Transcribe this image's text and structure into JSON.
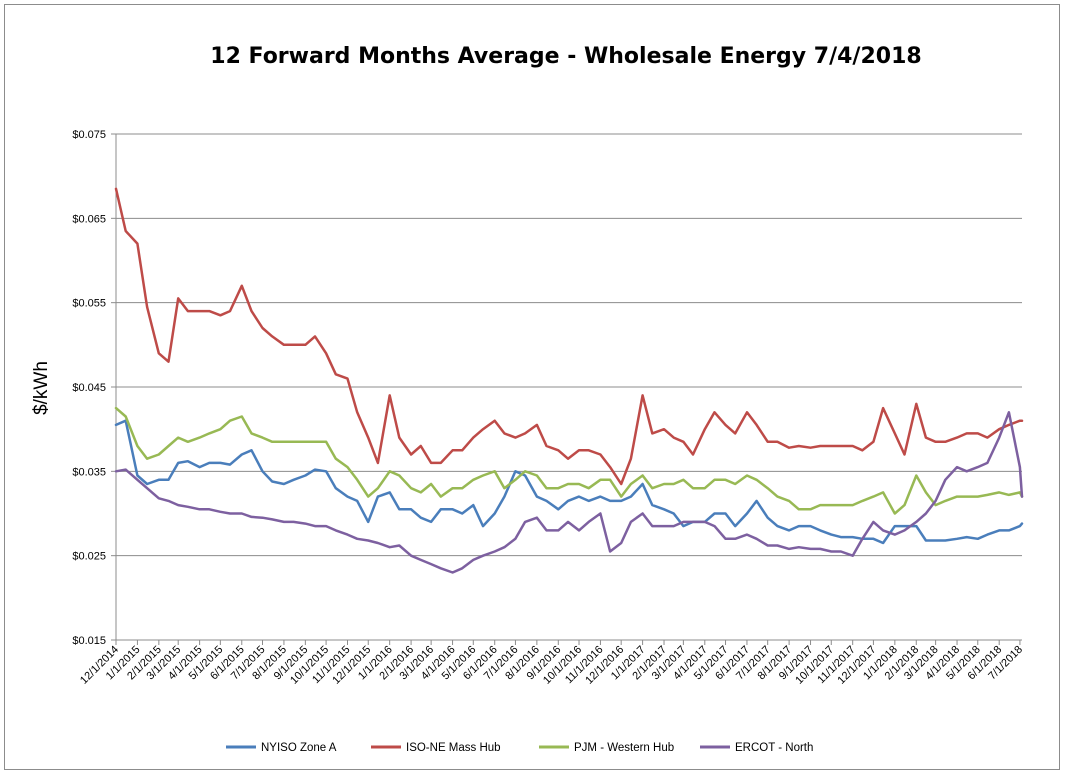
{
  "chart_data": {
    "type": "line",
    "title": "12 Forward Months Average - Wholesale Energy 7/4/2018",
    "xlabel": "",
    "ylabel": "$/kWh",
    "ylim": [
      0.015,
      0.075
    ],
    "y_ticks": [
      "$0.015",
      "$0.025",
      "$0.035",
      "$0.045",
      "$0.055",
      "$0.065",
      "$0.075"
    ],
    "x_ticks": [
      "12/1/2014",
      "1/1/2015",
      "2/1/2015",
      "3/1/2015",
      "4/1/2015",
      "5/1/2015",
      "6/1/2015",
      "7/1/2015",
      "8/1/2015",
      "9/1/2015",
      "10/1/2015",
      "11/1/2015",
      "12/1/2015",
      "1/1/2016",
      "2/1/2016",
      "3/1/2016",
      "4/1/2016",
      "5/1/2016",
      "6/1/2016",
      "7/1/2016",
      "8/1/2016",
      "9/1/2016",
      "10/1/2016",
      "11/1/2016",
      "12/1/2016",
      "1/1/2017",
      "2/1/2017",
      "3/1/2017",
      "4/1/2017",
      "5/1/2017",
      "6/1/2017",
      "7/1/2017",
      "8/1/2017",
      "9/1/2017",
      "10/1/2017",
      "11/1/2017",
      "12/1/2017",
      "1/1/2018",
      "2/1/2018",
      "3/1/2018",
      "4/1/2018",
      "5/1/2018",
      "6/1/2018",
      "7/1/2018"
    ],
    "grid": true,
    "legend_position": "bottom",
    "x": [
      "12/1/2014",
      "12/15/2014",
      "1/1/2015",
      "1/15/2015",
      "2/1/2015",
      "2/15/2015",
      "3/1/2015",
      "3/15/2015",
      "4/1/2015",
      "4/15/2015",
      "5/1/2015",
      "5/15/2015",
      "6/1/2015",
      "6/15/2015",
      "7/1/2015",
      "7/15/2015",
      "8/1/2015",
      "8/15/2015",
      "9/1/2015",
      "9/15/2015",
      "10/1/2015",
      "10/15/2015",
      "11/1/2015",
      "11/15/2015",
      "12/1/2015",
      "12/15/2015",
      "1/1/2016",
      "1/15/2016",
      "2/1/2016",
      "2/15/2016",
      "3/1/2016",
      "3/15/2016",
      "4/1/2016",
      "4/15/2016",
      "5/1/2016",
      "5/15/2016",
      "6/1/2016",
      "6/15/2016",
      "7/1/2016",
      "7/15/2016",
      "8/1/2016",
      "8/15/2016",
      "9/1/2016",
      "9/15/2016",
      "10/1/2016",
      "10/15/2016",
      "11/1/2016",
      "11/15/2016",
      "12/1/2016",
      "12/15/2016",
      "1/1/2017",
      "1/15/2017",
      "2/1/2017",
      "2/15/2017",
      "3/1/2017",
      "3/15/2017",
      "4/1/2017",
      "4/15/2017",
      "5/1/2017",
      "5/15/2017",
      "6/1/2017",
      "6/15/2017",
      "7/1/2017",
      "7/15/2017",
      "8/1/2017",
      "8/15/2017",
      "9/1/2017",
      "9/15/2017",
      "10/1/2017",
      "10/15/2017",
      "11/1/2017",
      "11/15/2017",
      "12/1/2017",
      "12/15/2017",
      "1/1/2018",
      "1/15/2018",
      "2/1/2018",
      "2/15/2018",
      "3/1/2018",
      "3/15/2018",
      "4/1/2018",
      "4/15/2018",
      "5/1/2018",
      "5/15/2018",
      "6/1/2018",
      "6/15/2018",
      "7/1/2018",
      "7/4/2018"
    ],
    "series": [
      {
        "name": "NYISO Zone A",
        "color": "#4a7ebb",
        "values": [
          0.0405,
          0.041,
          0.0345,
          0.0335,
          0.034,
          0.034,
          0.036,
          0.0362,
          0.0355,
          0.036,
          0.036,
          0.0358,
          0.037,
          0.0375,
          0.035,
          0.0338,
          0.0335,
          0.034,
          0.0345,
          0.0352,
          0.035,
          0.033,
          0.032,
          0.0315,
          0.029,
          0.032,
          0.0325,
          0.0305,
          0.0305,
          0.0295,
          0.029,
          0.0305,
          0.0305,
          0.03,
          0.031,
          0.0285,
          0.03,
          0.032,
          0.035,
          0.0345,
          0.032,
          0.0315,
          0.0305,
          0.0315,
          0.032,
          0.0315,
          0.032,
          0.0315,
          0.0315,
          0.032,
          0.0335,
          0.031,
          0.0305,
          0.03,
          0.0285,
          0.029,
          0.029,
          0.03,
          0.03,
          0.0285,
          0.03,
          0.0315,
          0.0295,
          0.0285,
          0.028,
          0.0285,
          0.0285,
          0.028,
          0.0275,
          0.0272,
          0.0272,
          0.027,
          0.027,
          0.0265,
          0.0285,
          0.0285,
          0.0285,
          0.0268,
          0.0268,
          0.0268,
          0.027,
          0.0272,
          0.027,
          0.0275,
          0.028,
          0.028,
          0.0285,
          0.0288
        ]
      },
      {
        "name": "ISO-NE Mass Hub",
        "color": "#be4b48",
        "values": [
          0.0685,
          0.0635,
          0.062,
          0.0545,
          0.049,
          0.048,
          0.0555,
          0.054,
          0.054,
          0.054,
          0.0535,
          0.054,
          0.057,
          0.054,
          0.052,
          0.051,
          0.05,
          0.05,
          0.05,
          0.051,
          0.049,
          0.0465,
          0.046,
          0.042,
          0.039,
          0.036,
          0.044,
          0.039,
          0.037,
          0.038,
          0.036,
          0.036,
          0.0375,
          0.0375,
          0.039,
          0.04,
          0.041,
          0.0395,
          0.039,
          0.0395,
          0.0405,
          0.038,
          0.0375,
          0.0365,
          0.0375,
          0.0375,
          0.037,
          0.0355,
          0.0335,
          0.0365,
          0.044,
          0.0395,
          0.04,
          0.039,
          0.0385,
          0.037,
          0.04,
          0.042,
          0.0405,
          0.0395,
          0.042,
          0.0405,
          0.0385,
          0.0385,
          0.0378,
          0.038,
          0.0378,
          0.038,
          0.038,
          0.038,
          0.038,
          0.0375,
          0.0385,
          0.0425,
          0.0395,
          0.037,
          0.043,
          0.039,
          0.0385,
          0.0385,
          0.039,
          0.0395,
          0.0395,
          0.039,
          0.04,
          0.0405,
          0.041,
          0.041
        ]
      },
      {
        "name": "PJM - Western Hub",
        "color": "#98b954",
        "values": [
          0.0425,
          0.0415,
          0.038,
          0.0365,
          0.037,
          0.038,
          0.039,
          0.0385,
          0.039,
          0.0395,
          0.04,
          0.041,
          0.0415,
          0.0395,
          0.039,
          0.0385,
          0.0385,
          0.0385,
          0.0385,
          0.0385,
          0.0385,
          0.0365,
          0.0355,
          0.034,
          0.032,
          0.033,
          0.035,
          0.0345,
          0.033,
          0.0325,
          0.0335,
          0.032,
          0.033,
          0.033,
          0.034,
          0.0345,
          0.035,
          0.033,
          0.034,
          0.035,
          0.0345,
          0.033,
          0.033,
          0.0335,
          0.0335,
          0.033,
          0.034,
          0.034,
          0.032,
          0.0335,
          0.0345,
          0.033,
          0.0335,
          0.0335,
          0.034,
          0.033,
          0.033,
          0.034,
          0.034,
          0.0335,
          0.0345,
          0.034,
          0.033,
          0.032,
          0.0315,
          0.0305,
          0.0305,
          0.031,
          0.031,
          0.031,
          0.031,
          0.0315,
          0.032,
          0.0325,
          0.03,
          0.031,
          0.0345,
          0.0325,
          0.031,
          0.0315,
          0.032,
          0.032,
          0.032,
          0.0322,
          0.0325,
          0.0322,
          0.0325,
          0.032
        ]
      },
      {
        "name": "ERCOT - North",
        "color": "#7d60a0",
        "values": [
          0.035,
          0.0352,
          0.034,
          0.033,
          0.0318,
          0.0315,
          0.031,
          0.0308,
          0.0305,
          0.0305,
          0.0302,
          0.03,
          0.03,
          0.0296,
          0.0295,
          0.0293,
          0.029,
          0.029,
          0.0288,
          0.0285,
          0.0285,
          0.028,
          0.0275,
          0.027,
          0.0268,
          0.0265,
          0.026,
          0.0262,
          0.025,
          0.0245,
          0.024,
          0.0235,
          0.023,
          0.0235,
          0.0245,
          0.025,
          0.0255,
          0.026,
          0.027,
          0.029,
          0.0295,
          0.028,
          0.028,
          0.029,
          0.028,
          0.029,
          0.03,
          0.0255,
          0.0265,
          0.029,
          0.03,
          0.0285,
          0.0285,
          0.0285,
          0.029,
          0.029,
          0.029,
          0.0285,
          0.027,
          0.027,
          0.0275,
          0.027,
          0.0262,
          0.0262,
          0.0258,
          0.026,
          0.0258,
          0.0258,
          0.0255,
          0.0255,
          0.025,
          0.027,
          0.029,
          0.028,
          0.0275,
          0.028,
          0.029,
          0.03,
          0.0315,
          0.034,
          0.0355,
          0.035,
          0.0355,
          0.036,
          0.039,
          0.042,
          0.0355,
          0.032
        ]
      }
    ]
  }
}
